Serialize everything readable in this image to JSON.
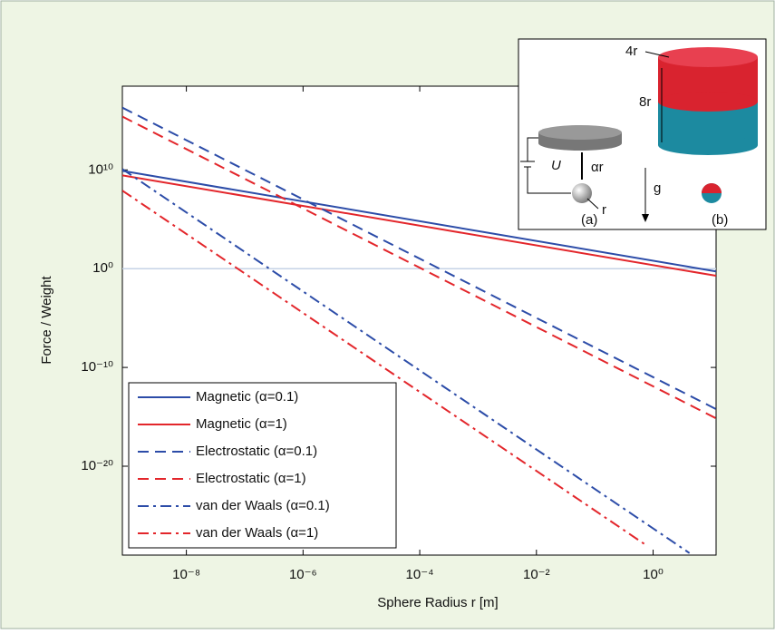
{
  "chart_data": {
    "type": "line",
    "xlabel": "Sphere Radius r [m]",
    "ylabel": "Force / Weight",
    "xscale": "log",
    "yscale": "log",
    "xlim": [
      8e-10,
      12
    ],
    "ylim": [
      1e-29,
      3e+18
    ],
    "xticks": [
      {
        "value": 1e-08,
        "label": "10⁻⁸"
      },
      {
        "value": 1e-06,
        "label": "10⁻⁶"
      },
      {
        "value": 0.0001,
        "label": "10⁻⁴"
      },
      {
        "value": 0.01,
        "label": "10⁻²"
      },
      {
        "value": 1,
        "label": "10⁰"
      }
    ],
    "yticks": [
      {
        "value": 1e-20,
        "label": "10⁻²⁰"
      },
      {
        "value": 1e-10,
        "label": "10⁻¹⁰"
      },
      {
        "value": 1,
        "label": "10⁰"
      },
      {
        "value": 10000000000.0,
        "label": "10¹⁰"
      }
    ],
    "reference_line": 1,
    "legend": "lower left",
    "series": [
      {
        "name": "Magnetic (α=0.1)",
        "color": "#2c4ca8",
        "dash": "solid",
        "x": [
          8e-10,
          12
        ],
        "values": [
          8000000000.0,
          0.53
        ]
      },
      {
        "name": "Magnetic (α=1)",
        "color": "#e3262b",
        "dash": "solid",
        "x": [
          8e-10,
          12
        ],
        "values": [
          2800000000.0,
          0.19
        ]
      },
      {
        "name": "Electrostatic (α=0.1)",
        "color": "#2c4ca8",
        "dash": "dashed",
        "x": [
          8e-10,
          12
        ],
        "values": [
          2e+16,
          6e-15
        ]
      },
      {
        "name": "Electrostatic (α=1)",
        "color": "#e3262b",
        "dash": "dashed",
        "x": [
          8e-10,
          12
        ],
        "values": [
          2500000000000000.0,
          7e-16
        ]
      },
      {
        "name": "van der Waals (α=0.1)",
        "color": "#2c4ca8",
        "dash": "dashdot",
        "x": [
          8e-10,
          4.2
        ],
        "values": [
          12000000000.0,
          1.6e-29
        ]
      },
      {
        "name": "van der Waals (α=1)",
        "color": "#e3262b",
        "dash": "dashdot",
        "x": [
          8e-10,
          0.76
        ],
        "values": [
          80000000.0,
          1e-28
        ]
      }
    ],
    "inset_labels": [
      "4r",
      "8r",
      "U",
      "αr",
      "r",
      "g",
      "(a)",
      "(b)"
    ]
  }
}
